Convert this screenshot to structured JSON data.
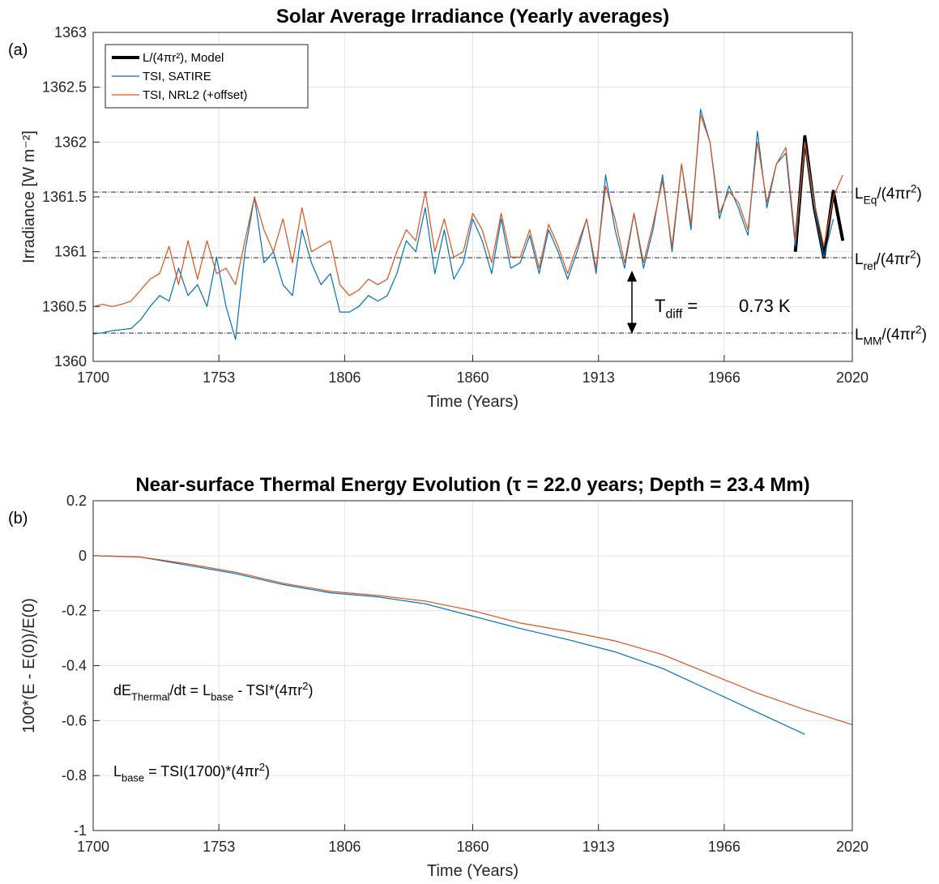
{
  "chart_data": [
    {
      "type": "line",
      "panel_label": "(a)",
      "title": "Solar Average Irradiance (Yearly averages)",
      "xlabel": "Time (Years)",
      "ylabel": "Irradiance [W m⁻²]",
      "xlim": [
        1700,
        2020
      ],
      "xticks": [
        1700,
        1753,
        1806,
        1860,
        1913,
        1966,
        2020
      ],
      "ylim": [
        1360,
        1363
      ],
      "yticks": [
        1360,
        1360.5,
        1361,
        1361.5,
        1362,
        1362.5,
        1363
      ],
      "grid": true,
      "legend": "upper left",
      "x": [
        1700,
        1704,
        1708,
        1712,
        1716,
        1720,
        1724,
        1728,
        1732,
        1736,
        1740,
        1744,
        1748,
        1752,
        1756,
        1760,
        1764,
        1768,
        1772,
        1776,
        1780,
        1784,
        1788,
        1792,
        1796,
        1800,
        1804,
        1808,
        1812,
        1816,
        1820,
        1824,
        1828,
        1832,
        1836,
        1840,
        1844,
        1848,
        1852,
        1856,
        1860,
        1864,
        1868,
        1872,
        1876,
        1880,
        1884,
        1888,
        1892,
        1896,
        1900,
        1904,
        1908,
        1912,
        1916,
        1920,
        1924,
        1928,
        1932,
        1936,
        1940,
        1944,
        1948,
        1952,
        1956,
        1960,
        1964,
        1968,
        1972,
        1976,
        1980,
        1984,
        1988,
        1992,
        1996,
        2000,
        2004,
        2008,
        2012,
        2016
      ],
      "series": [
        {
          "name": "L/(4πr²), Model",
          "color": "#000000",
          "width": 4,
          "values": [
            null,
            null,
            null,
            null,
            null,
            null,
            null,
            null,
            null,
            null,
            null,
            null,
            null,
            null,
            null,
            null,
            null,
            null,
            null,
            null,
            null,
            null,
            null,
            null,
            null,
            null,
            null,
            null,
            null,
            null,
            null,
            null,
            null,
            null,
            null,
            null,
            null,
            null,
            null,
            null,
            null,
            null,
            null,
            null,
            null,
            null,
            null,
            null,
            null,
            null,
            null,
            null,
            null,
            null,
            null,
            null,
            null,
            null,
            null,
            null,
            null,
            null,
            null,
            null,
            null,
            null,
            null,
            null,
            null,
            null,
            null,
            null,
            null,
            null,
            1361.0,
            1362.05,
            1361.4,
            1360.95,
            1361.55,
            1361.1
          ]
        },
        {
          "name": "TSI, SATIRE",
          "color": "#0072bd",
          "width": 1.2,
          "values": [
            1360.25,
            1360.26,
            1360.28,
            1360.29,
            1360.3,
            1360.38,
            1360.5,
            1360.6,
            1360.55,
            1360.85,
            1360.6,
            1360.7,
            1360.5,
            1360.95,
            1360.5,
            1360.2,
            1361.0,
            1361.5,
            1360.9,
            1361.0,
            1360.7,
            1360.6,
            1361.2,
            1360.9,
            1360.7,
            1360.8,
            1360.45,
            1360.45,
            1360.5,
            1360.6,
            1360.55,
            1360.6,
            1360.8,
            1361.1,
            1361.0,
            1361.4,
            1360.8,
            1361.2,
            1360.75,
            1360.9,
            1361.3,
            1361.1,
            1360.8,
            1361.3,
            1360.85,
            1360.9,
            1361.15,
            1360.8,
            1361.2,
            1361.0,
            1360.75,
            1361.0,
            1361.3,
            1360.8,
            1361.7,
            1361.2,
            1360.85,
            1361.35,
            1360.85,
            1361.2,
            1361.7,
            1361.0,
            1361.8,
            1361.2,
            1362.3,
            1362.0,
            1361.3,
            1361.6,
            1361.4,
            1361.15,
            1362.1,
            1361.4,
            1361.8,
            1361.9,
            1361.05,
            1362.0,
            1361.4,
            1360.95,
            1361.3,
            null
          ]
        },
        {
          "name": "TSI, NRL2 (+offset)",
          "color": "#d95319",
          "width": 1.2,
          "values": [
            1360.5,
            1360.52,
            1360.5,
            1360.52,
            1360.55,
            1360.65,
            1360.75,
            1360.8,
            1361.05,
            1360.7,
            1361.1,
            1360.75,
            1361.1,
            1360.8,
            1360.85,
            1360.7,
            1361.1,
            1361.5,
            1361.2,
            1361.0,
            1361.3,
            1360.9,
            1361.4,
            1361.0,
            1361.05,
            1361.1,
            1360.7,
            1360.6,
            1360.65,
            1360.75,
            1360.7,
            1360.75,
            1361.0,
            1361.2,
            1361.1,
            1361.55,
            1361.0,
            1361.3,
            1360.95,
            1361.0,
            1361.35,
            1361.2,
            1360.9,
            1361.35,
            1360.95,
            1360.95,
            1361.2,
            1360.85,
            1361.25,
            1361.05,
            1360.8,
            1361.05,
            1361.3,
            1360.85,
            1361.6,
            1361.3,
            1360.9,
            1361.35,
            1360.9,
            1361.25,
            1361.65,
            1361.05,
            1361.8,
            1361.25,
            1362.25,
            1362.0,
            1361.35,
            1361.55,
            1361.45,
            1361.2,
            1362.0,
            1361.45,
            1361.8,
            1361.95,
            1361.1,
            1362.0,
            1361.45,
            1361.05,
            1361.5,
            1361.7
          ]
        }
      ],
      "ref_lines": [
        {
          "value": 1361.544,
          "label": [
            {
              "text": "L",
              "pos": "base"
            },
            {
              "text": "Eq",
              "pos": "sub"
            },
            {
              "text": "/(4πr",
              "pos": "base"
            },
            {
              "text": "2",
              "pos": "sup"
            },
            {
              "text": ")",
              "pos": "base"
            }
          ]
        },
        {
          "value": 1360.945,
          "label": [
            {
              "text": "L",
              "pos": "base"
            },
            {
              "text": "ref",
              "pos": "sub"
            },
            {
              "text": "/(4πr",
              "pos": "base"
            },
            {
              "text": "2",
              "pos": "sup"
            },
            {
              "text": ")",
              "pos": "base"
            }
          ]
        },
        {
          "value": 1360.258,
          "label": [
            {
              "text": "L",
              "pos": "base"
            },
            {
              "text": "MM",
              "pos": "sub"
            },
            {
              "text": "/(4πr",
              "pos": "base"
            },
            {
              "text": "2",
              "pos": "sup"
            },
            {
              "text": ")",
              "pos": "base"
            }
          ]
        }
      ],
      "annotations": [
        [
          {
            "text": "T",
            "pos": "base"
          },
          {
            "text": "diff",
            "pos": "sub"
          },
          {
            "text": " =",
            "pos": "base"
          }
        ],
        [
          {
            "text": "0.73 K",
            "pos": "base"
          }
        ]
      ]
    },
    {
      "type": "line",
      "panel_label": "(b)",
      "title": "Near-surface Thermal Energy Evolution (τ =  22.0 years; Depth =  23.4 Mm)",
      "xlabel": "Time (Years)",
      "ylabel": "100*(E - E(0))/E(0)",
      "xlim": [
        1700,
        2020
      ],
      "xticks": [
        1700,
        1753,
        1806,
        1860,
        1913,
        1966,
        2020
      ],
      "ylim": [
        -1,
        0.2
      ],
      "yticks": [
        -1,
        -0.8,
        -0.6,
        -0.4,
        -0.2,
        0,
        0.2
      ],
      "grid": true,
      "x": [
        1700,
        1720,
        1740,
        1760,
        1780,
        1800,
        1820,
        1840,
        1860,
        1880,
        1900,
        1920,
        1940,
        1960,
        1980,
        2000,
        2020
      ],
      "series": [
        {
          "color": "#0072bd",
          "width": 1.2,
          "values": [
            0,
            -0.005,
            -0.035,
            -0.065,
            -0.105,
            -0.135,
            -0.15,
            -0.175,
            -0.22,
            -0.265,
            -0.305,
            -0.35,
            -0.41,
            -0.49,
            -0.57,
            -0.65,
            null
          ]
        },
        {
          "color": "#d95319",
          "width": 1.2,
          "values": [
            0,
            -0.005,
            -0.03,
            -0.06,
            -0.1,
            -0.13,
            -0.145,
            -0.165,
            -0.2,
            -0.245,
            -0.275,
            -0.31,
            -0.36,
            -0.43,
            -0.5,
            -0.56,
            -0.615
          ]
        }
      ],
      "annotations": [
        [
          {
            "text": "dE",
            "pos": "base"
          },
          {
            "text": "Thermal",
            "pos": "sub"
          },
          {
            "text": "/dt = L",
            "pos": "base"
          },
          {
            "text": "base",
            "pos": "sub"
          },
          {
            "text": " - TSI*(4πr",
            "pos": "base"
          },
          {
            "text": "2",
            "pos": "sup"
          },
          {
            "text": ")",
            "pos": "base"
          }
        ],
        [
          {
            "text": "L",
            "pos": "base"
          },
          {
            "text": "base",
            "pos": "sub"
          },
          {
            "text": " = TSI(1700)*(4πr",
            "pos": "base"
          },
          {
            "text": "2",
            "pos": "sup"
          },
          {
            "text": ")",
            "pos": "base"
          }
        ]
      ]
    }
  ]
}
